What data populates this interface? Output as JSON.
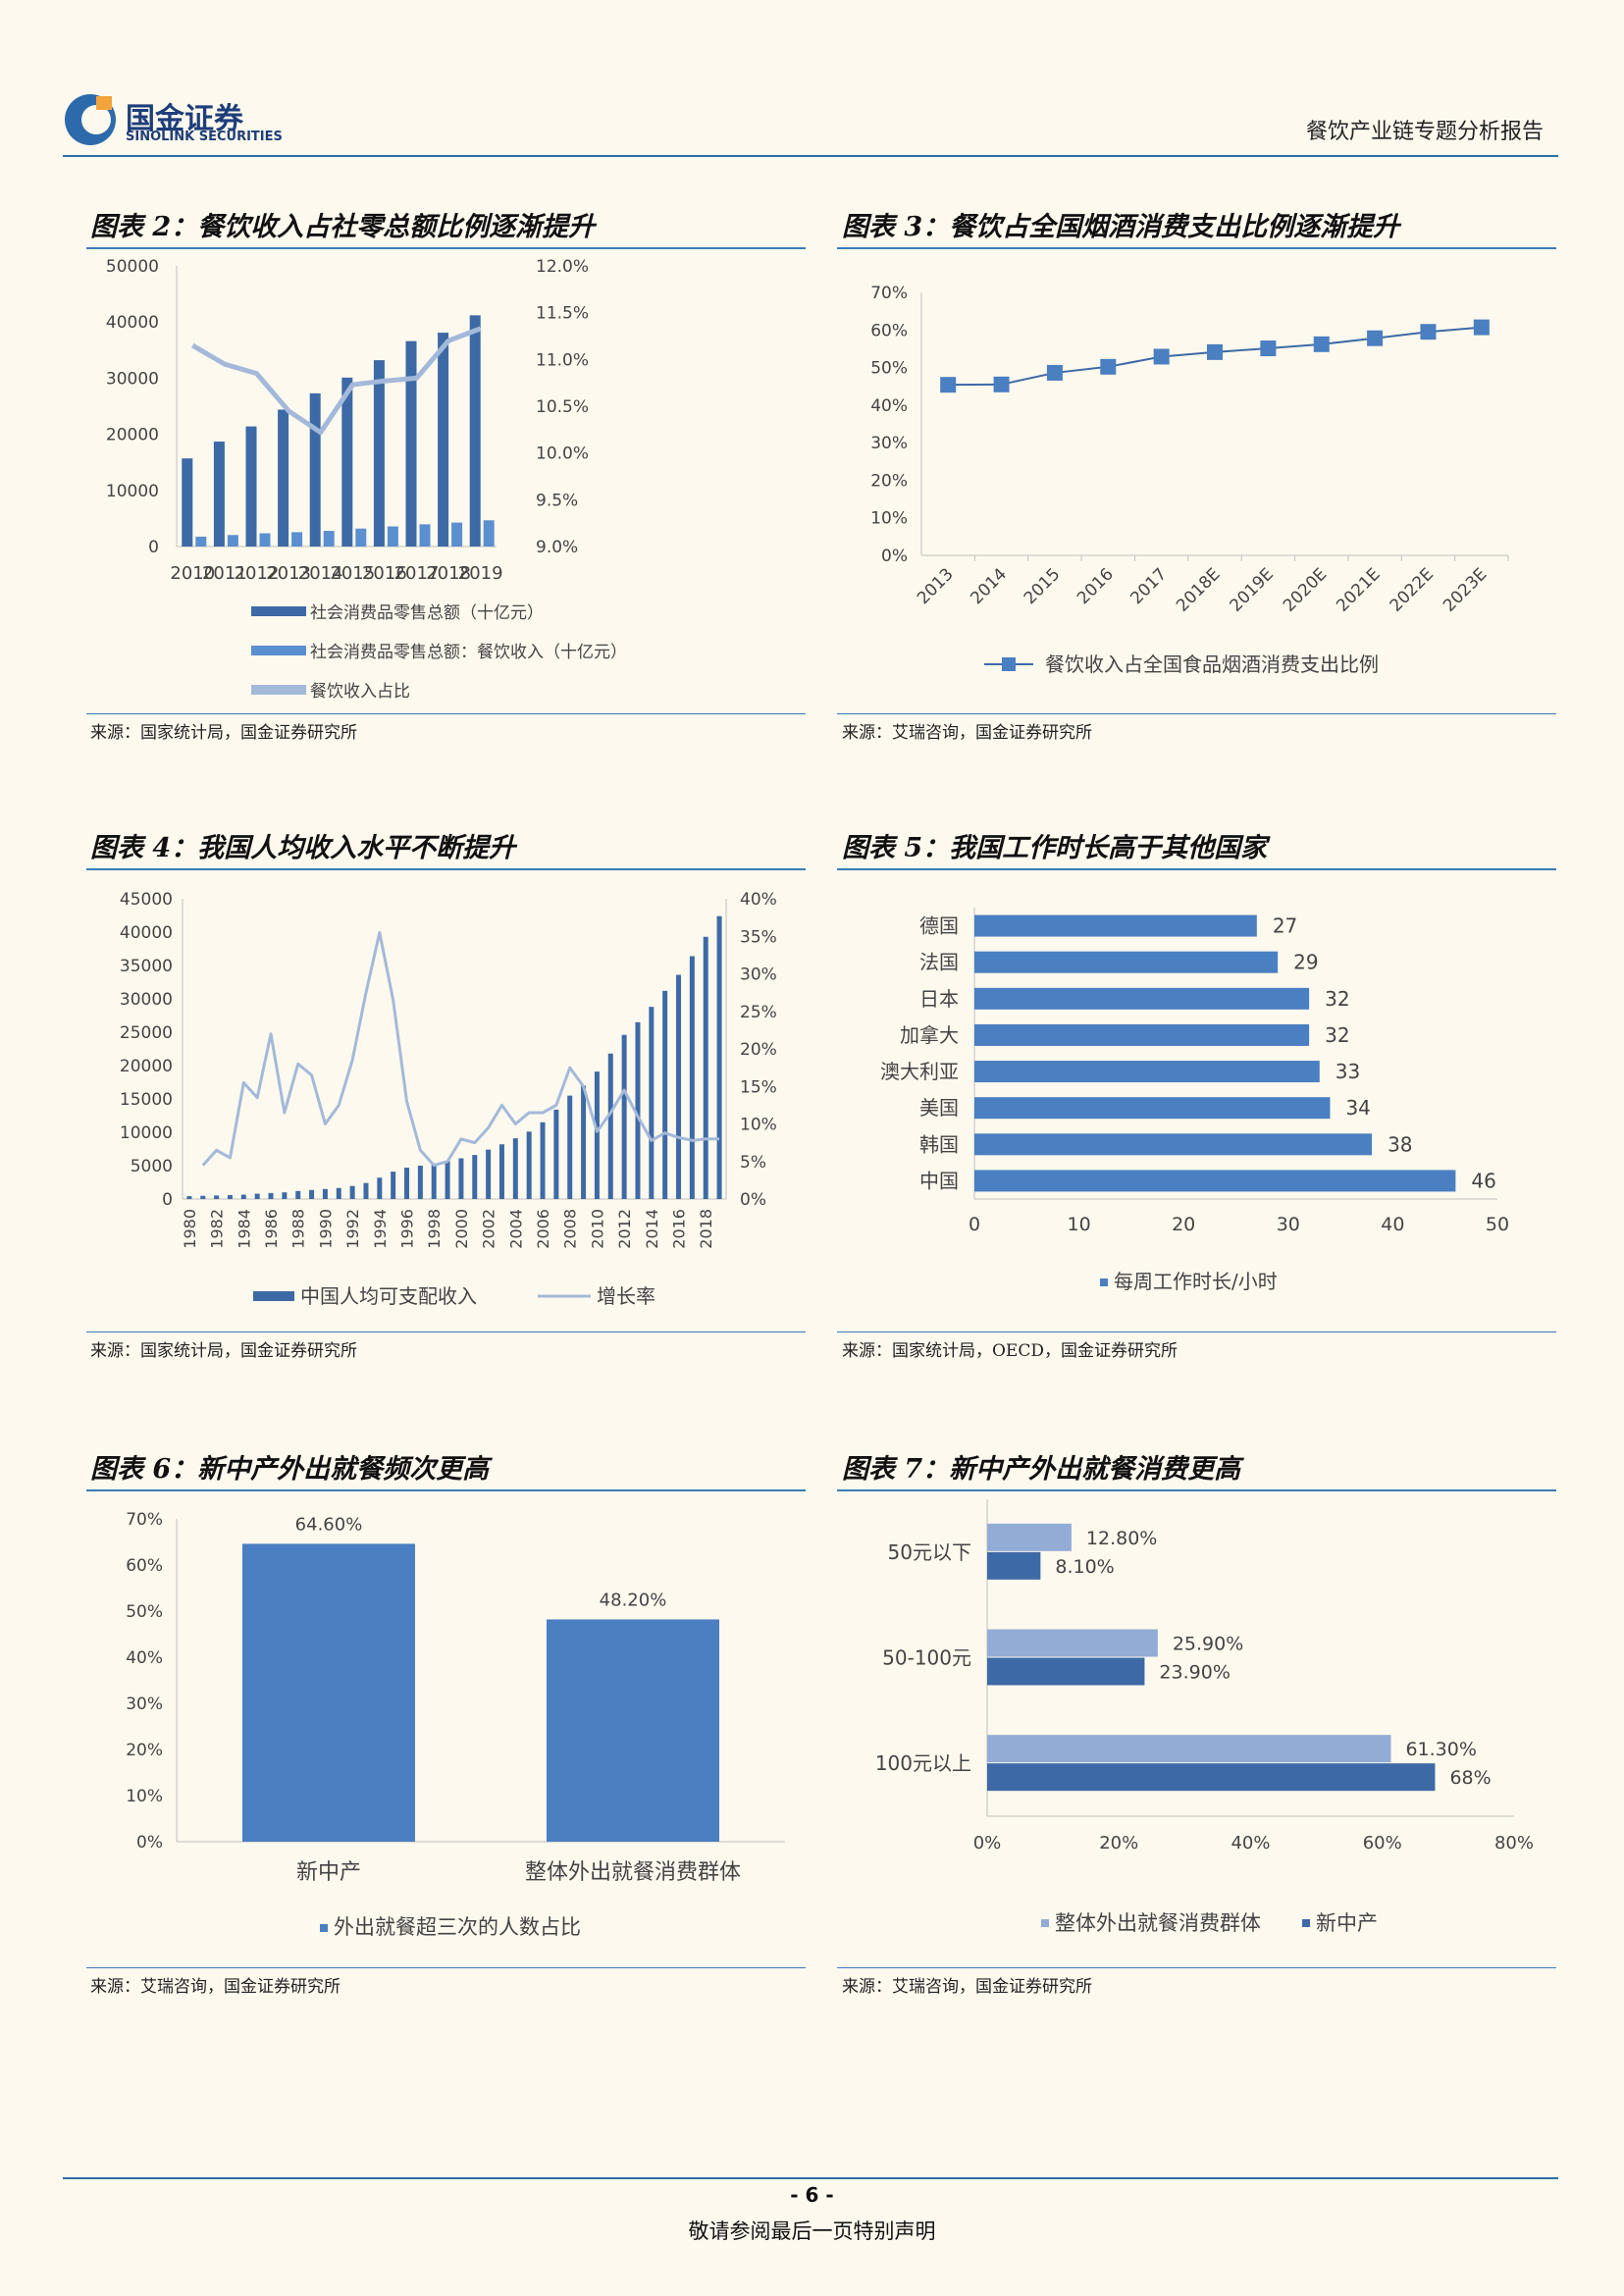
{
  "header": {
    "logo_cn": "国金证券",
    "logo_en": "SINOLINK SECURITIES",
    "report_title": "餐饮产业链专题分析报告"
  },
  "footer": {
    "page_number": "- 6 -",
    "disclaimer": "敬请参阅最后一页特别声明"
  },
  "colors": {
    "dark_bar": "#3d6aa6",
    "light_bar": "#5b8fd0",
    "line": "#a4b9da",
    "accent": "#3b7bb7"
  },
  "panels": {
    "p2": {
      "title": "图表 2：餐饮收入占社零总额比例逐渐提升",
      "source": "来源：国家统计局，国金证券研究所"
    },
    "p3": {
      "title": "图表 3：餐饮占全国烟酒消费支出比例逐渐提升",
      "source": "来源：艾瑞咨询，国金证券研究所"
    },
    "p4": {
      "title": "图表 4：我国人均收入水平不断提升",
      "source": "来源：国家统计局，国金证券研究所"
    },
    "p5": {
      "title": "图表 5：我国工作时长高于其他国家",
      "source": "来源：国家统计局，OECD，国金证券研究所"
    },
    "p6": {
      "title": "图表 6：新中产外出就餐频次更高",
      "source": "来源：艾瑞咨询，国金证券研究所"
    },
    "p7": {
      "title": "图表 7：新中产外出就餐消费更高",
      "source": "来源：艾瑞咨询，国金证券研究所"
    }
  },
  "chart_data": [
    {
      "id": "c2",
      "type": "bar",
      "categories": [
        "2010",
        "2011",
        "2012",
        "2013",
        "2014",
        "2015",
        "2016",
        "2017",
        "2018",
        "2019"
      ],
      "series": [
        {
          "name": "社会消费品零售总额（十亿元）",
          "axis": "left",
          "values": [
            15700,
            18700,
            21400,
            24400,
            27300,
            30100,
            33200,
            36600,
            38100,
            41200
          ]
        },
        {
          "name": "社会消费品零售总额：餐饮收入（十亿元）",
          "axis": "left",
          "values": [
            1760,
            2050,
            2360,
            2560,
            2790,
            3200,
            3580,
            3960,
            4270,
            4670
          ]
        },
        {
          "name": "餐饮收入占比",
          "axis": "right",
          "type": "line",
          "values": [
            11.15,
            10.95,
            10.85,
            10.45,
            10.22,
            10.73,
            10.77,
            10.8,
            11.2,
            11.33
          ]
        }
      ],
      "y_left": {
        "min": 0,
        "max": 50000,
        "ticks": [
          "0",
          "10000",
          "20000",
          "30000",
          "40000",
          "50000"
        ]
      },
      "y_right": {
        "min": 9.0,
        "max": 12.0,
        "ticks": [
          "9.0%",
          "9.5%",
          "10.0%",
          "10.5%",
          "11.0%",
          "11.5%",
          "12.0%"
        ]
      }
    },
    {
      "id": "c3",
      "type": "line",
      "categories": [
        "2013",
        "2014",
        "2015",
        "2016",
        "2017",
        "2018E",
        "2019E",
        "2020E",
        "2021E",
        "2022E",
        "2023E"
      ],
      "series": [
        {
          "name": "餐饮收入占全国食品烟酒消费支出比例",
          "values": [
            45.4,
            45.5,
            48.6,
            50.2,
            52.9,
            54.1,
            55.1,
            56.2,
            57.8,
            59.5,
            60.7
          ]
        }
      ],
      "y": {
        "min": 0,
        "max": 70,
        "ticks": [
          "0%",
          "10%",
          "20%",
          "30%",
          "40%",
          "50%",
          "60%",
          "70%"
        ]
      }
    },
    {
      "id": "c4",
      "type": "bar",
      "categories": [
        "1980",
        "1981",
        "1982",
        "1983",
        "1984",
        "1985",
        "1986",
        "1987",
        "1988",
        "1989",
        "1990",
        "1991",
        "1992",
        "1993",
        "1994",
        "1995",
        "1996",
        "1997",
        "1998",
        "1999",
        "2000",
        "2001",
        "2002",
        "2003",
        "2004",
        "2005",
        "2006",
        "2007",
        "2008",
        "2009",
        "2010",
        "2011",
        "2012",
        "2013",
        "2014",
        "2015",
        "2016",
        "2017",
        "2018",
        "2019"
      ],
      "x_tick_labels": [
        "1980",
        "1982",
        "1984",
        "1986",
        "1988",
        "1990",
        "1992",
        "1994",
        "1996",
        "1998",
        "2000",
        "2002",
        "2004",
        "2006",
        "2008",
        "2010",
        "2012",
        "2014",
        "2016",
        "2018"
      ],
      "series": [
        {
          "name": "中国人均可支配收入",
          "axis": "left",
          "values": [
            430,
            480,
            530,
            580,
            650,
            800,
            900,
            1000,
            1200,
            1350,
            1500,
            1650,
            1950,
            2400,
            3200,
            4100,
            4700,
            5000,
            5300,
            5700,
            6100,
            6600,
            7400,
            8200,
            9100,
            10100,
            11500,
            13400,
            15500,
            17000,
            19100,
            21800,
            24600,
            26500,
            28800,
            31200,
            33600,
            36400,
            39300,
            42400
          ]
        },
        {
          "name": "增长率",
          "axis": "right",
          "type": "line",
          "values": [
            null,
            4.5,
            6.5,
            5.5,
            15.5,
            13.5,
            22,
            11.5,
            18,
            16.5,
            10,
            12.5,
            18.5,
            27.5,
            35.5,
            26.5,
            13,
            6.5,
            4.5,
            5,
            8,
            7.5,
            9.5,
            12.5,
            10,
            11.5,
            11.5,
            12.5,
            17.5,
            15,
            9,
            11.5,
            14.5,
            11,
            7.8,
            8.8,
            8.2,
            7.8,
            8,
            8
          ]
        }
      ],
      "y_left": {
        "min": 0,
        "max": 45000,
        "ticks": [
          "0",
          "5000",
          "10000",
          "15000",
          "20000",
          "25000",
          "30000",
          "35000",
          "40000",
          "45000"
        ]
      },
      "y_right": {
        "min": 0,
        "max": 40,
        "ticks": [
          "0%",
          "5%",
          "10%",
          "15%",
          "20%",
          "25%",
          "30%",
          "35%",
          "40%"
        ]
      }
    },
    {
      "id": "c5",
      "type": "bar",
      "orientation": "horizontal",
      "categories": [
        "德国",
        "法国",
        "日本",
        "加拿大",
        "澳大利亚",
        "美国",
        "韩国",
        "中国"
      ],
      "series": [
        {
          "name": "每周工作时长/小时",
          "values": [
            27,
            29,
            32,
            32,
            33,
            34,
            38,
            46
          ]
        }
      ],
      "x": {
        "min": 0,
        "max": 50,
        "ticks": [
          "0",
          "10",
          "20",
          "30",
          "40",
          "50"
        ]
      }
    },
    {
      "id": "c6",
      "type": "bar",
      "categories": [
        "新中产",
        "整体外出就餐消费群体"
      ],
      "series": [
        {
          "name": "外出就餐超三次的人数占比",
          "values": [
            64.6,
            48.2
          ],
          "labels": [
            "64.60%",
            "48.20%"
          ]
        }
      ],
      "y": {
        "min": 0,
        "max": 70,
        "ticks": [
          "0%",
          "10%",
          "20%",
          "30%",
          "40%",
          "50%",
          "60%",
          "70%"
        ]
      }
    },
    {
      "id": "c7",
      "type": "bar",
      "orientation": "horizontal",
      "categories": [
        "50元以下",
        "50-100元",
        "100元以上"
      ],
      "series": [
        {
          "name": "整体外出就餐消费群体",
          "values": [
            12.8,
            25.9,
            61.3
          ],
          "labels": [
            "12.80%",
            "25.90%",
            "61.30%"
          ]
        },
        {
          "name": "新中产",
          "values": [
            8.1,
            23.9,
            68
          ],
          "labels": [
            "8.10%",
            "23.90%",
            "68%"
          ]
        }
      ],
      "x": {
        "min": 0,
        "max": 80,
        "ticks": [
          "0%",
          "20%",
          "40%",
          "60%",
          "80%"
        ]
      }
    }
  ]
}
